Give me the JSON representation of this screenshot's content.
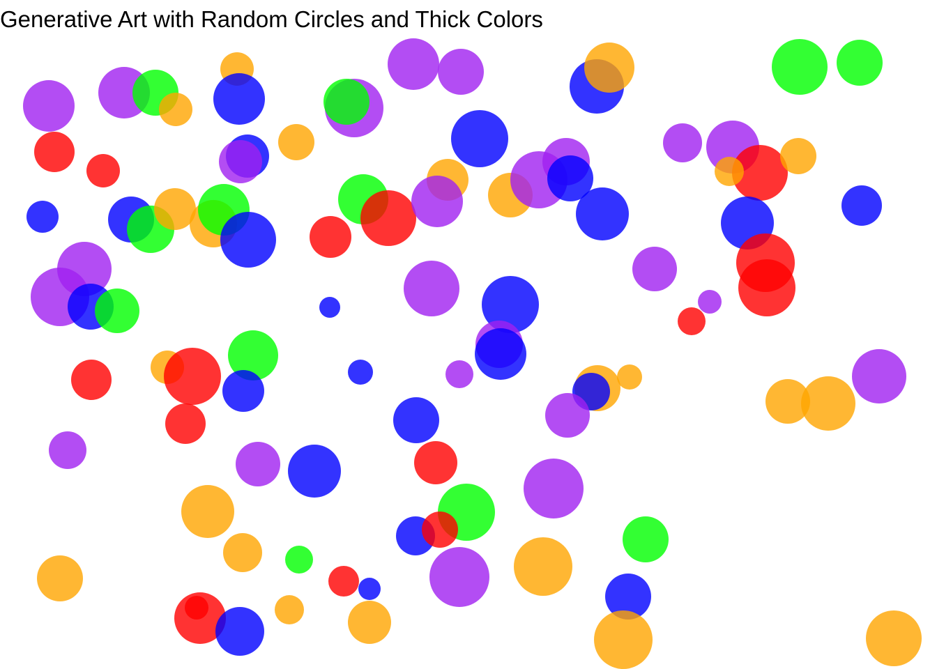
{
  "title": "Generative Art with Random Circles and Thick Colors",
  "palette": {
    "purple": "#a020f0",
    "green": "#00ff00",
    "blue": "#0000ff",
    "red": "#ff0000",
    "orange": "#ffa500"
  },
  "circle_opacity": 0.8
}
